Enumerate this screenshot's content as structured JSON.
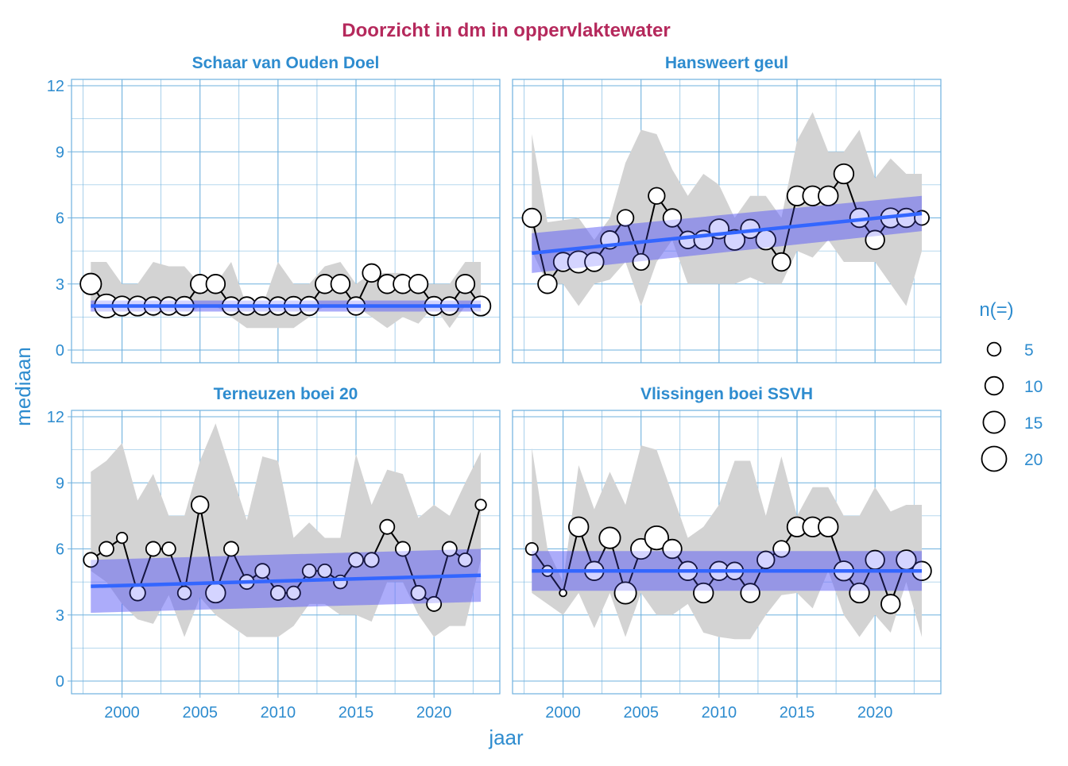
{
  "chart_data": {
    "type": "scatter",
    "title": "Doorzicht in dm in oppervlaktewater",
    "xlabel": "jaar",
    "ylabel": "mediaan",
    "xlim": [
      1996.7,
      2024.2
    ],
    "ylim": [
      -0.6,
      12.3
    ],
    "x_ticks": [
      "2000",
      "2005",
      "2010",
      "2015",
      "2020"
    ],
    "y_ticks": [
      "0",
      "3",
      "6",
      "9",
      "12"
    ],
    "grid": true,
    "legend": {
      "title": "n(=)",
      "placement": "right",
      "entries": [
        "5",
        "10",
        "15",
        "20"
      ],
      "values": [
        5,
        10,
        15,
        20
      ]
    },
    "colors": {
      "title": "#b5295c",
      "text": "#2e8ccf",
      "grid": "#6fb1de",
      "band": "#d3d3d3",
      "trend": "#3366ff",
      "ci": "#9999ee"
    },
    "years": [
      1998,
      1999,
      2000,
      2001,
      2002,
      2003,
      2004,
      2005,
      2006,
      2007,
      2008,
      2009,
      2010,
      2011,
      2012,
      2013,
      2014,
      2015,
      2016,
      2017,
      2018,
      2019,
      2020,
      2021,
      2022,
      2023
    ],
    "panels": [
      {
        "name": "Schaar van Ouden Doel",
        "median": [
          3,
          2,
          2,
          2,
          2,
          2,
          2,
          3,
          3,
          2,
          2,
          2,
          2,
          2,
          2,
          3,
          3,
          2,
          3.5,
          3,
          3,
          3,
          2,
          2,
          3,
          2
        ],
        "n": [
          14,
          18,
          12,
          12,
          10,
          10,
          11,
          11,
          11,
          10,
          10,
          10,
          10,
          11,
          11,
          11,
          11,
          10,
          10,
          11,
          11,
          11,
          11,
          10,
          11,
          12
        ],
        "band_upper": [
          4,
          4,
          3,
          3,
          4,
          3.8,
          3.8,
          3,
          3,
          4,
          2,
          2,
          4,
          3,
          3,
          3.8,
          4,
          3,
          3.5,
          3.5,
          3.5,
          3,
          3,
          3,
          4,
          4
        ],
        "band_lower": [
          2,
          2,
          2,
          2,
          1.5,
          1.8,
          1.5,
          2,
          2,
          1.5,
          1,
          1,
          1,
          1,
          1.5,
          2,
          2,
          2,
          1.5,
          1,
          1.5,
          1.2,
          2,
          1,
          2,
          2
        ],
        "trend": [
          2.0,
          2.0
        ],
        "ci_lower": [
          1.75,
          1.75
        ],
        "ci_upper": [
          2.25,
          2.25
        ]
      },
      {
        "name": "Hansweert geul",
        "median": [
          6,
          3,
          4,
          4,
          4,
          5,
          6,
          4,
          7,
          6,
          5,
          5,
          5.5,
          5,
          5.5,
          5,
          4,
          7,
          7,
          7,
          8,
          6,
          5,
          6,
          6,
          6
        ],
        "n": [
          11,
          11,
          11,
          15,
          11,
          10,
          8,
          8,
          8,
          10,
          9,
          11,
          12,
          13,
          11,
          12,
          10,
          12,
          12,
          12,
          12,
          11,
          11,
          12,
          11,
          6
        ],
        "band_upper": [
          9.8,
          5.8,
          5.9,
          6,
          5,
          6,
          8.5,
          10,
          9.8,
          8.2,
          7,
          8,
          7.5,
          6,
          7,
          7,
          6,
          9.5,
          10.8,
          9,
          9,
          10,
          7.8,
          8.7,
          8,
          8
        ],
        "band_lower": [
          4.5,
          3,
          3,
          2,
          3,
          3.2,
          4,
          2,
          4,
          5,
          3,
          3,
          3,
          3,
          3.3,
          3,
          3,
          4.5,
          4.2,
          5,
          4,
          4,
          4,
          3,
          2,
          4.5
        ],
        "trend": [
          4.4,
          6.2
        ],
        "ci_lower": [
          3.5,
          5.4
        ],
        "ci_upper": [
          5.3,
          7.0
        ]
      },
      {
        "name": "Terneuzen boei 20",
        "median": [
          5.5,
          6,
          6.5,
          4,
          6,
          6,
          4,
          8,
          4,
          6,
          4.5,
          5,
          4,
          4,
          5,
          5,
          4.5,
          5.5,
          5.5,
          7,
          6,
          4,
          3.5,
          6,
          5.5,
          8
        ],
        "n": [
          6,
          6,
          3,
          7,
          6,
          5,
          5,
          9,
          12,
          6,
          6,
          6,
          6,
          5,
          5,
          5,
          5,
          6,
          6,
          6,
          6,
          6,
          6,
          6,
          5,
          3
        ],
        "band_upper": [
          9.5,
          10,
          10.8,
          8.2,
          9.4,
          7.5,
          7.5,
          10,
          11.7,
          9.5,
          7.3,
          10.2,
          10,
          6.5,
          7.2,
          6.5,
          6.5,
          10.3,
          8,
          9.6,
          9.4,
          7.4,
          8,
          7.5,
          9,
          10.4
        ],
        "band_lower": [
          5,
          4.5,
          3.5,
          2.8,
          2.6,
          3.9,
          2,
          3.8,
          3,
          2.5,
          2,
          2,
          2,
          2.5,
          3.5,
          3.5,
          3,
          3,
          2.7,
          4.5,
          4.5,
          3,
          2,
          2.5,
          2.5,
          5.5
        ],
        "trend": [
          4.3,
          4.8
        ],
        "ci_lower": [
          3.1,
          3.6
        ],
        "ci_upper": [
          5.5,
          6.0
        ]
      },
      {
        "name": "Vlissingen boei SSVH",
        "median": [
          6,
          5,
          4,
          7,
          5,
          6.5,
          4,
          6,
          6.5,
          6,
          5,
          4,
          5,
          5,
          4,
          5.5,
          6,
          7,
          7,
          7,
          5,
          4,
          5.5,
          3.5,
          5.5,
          5
        ],
        "n": [
          4,
          3,
          1,
          12,
          11,
          14,
          15,
          13,
          18,
          11,
          11,
          12,
          11,
          9,
          11,
          9,
          8,
          12,
          12,
          12,
          12,
          12,
          11,
          11,
          12,
          11
        ],
        "band_upper": [
          10.6,
          6,
          4.5,
          9.8,
          7.8,
          9.5,
          8,
          10.7,
          10.5,
          8.5,
          6.5,
          7,
          8,
          10,
          10,
          7.5,
          10.2,
          7.5,
          8.8,
          8.8,
          7.5,
          7.5,
          8.8,
          7.7,
          8,
          8
        ],
        "band_lower": [
          4,
          3.5,
          3,
          4,
          2.4,
          4,
          2,
          4,
          3,
          3,
          3.5,
          2.2,
          2,
          1.9,
          1.9,
          3,
          3.9,
          4,
          3.3,
          5,
          3,
          2,
          3,
          2.2,
          4.5,
          2
        ],
        "trend": [
          5.0,
          5.0
        ],
        "ci_lower": [
          4.1,
          4.1
        ],
        "ci_upper": [
          5.9,
          5.9
        ]
      }
    ]
  }
}
